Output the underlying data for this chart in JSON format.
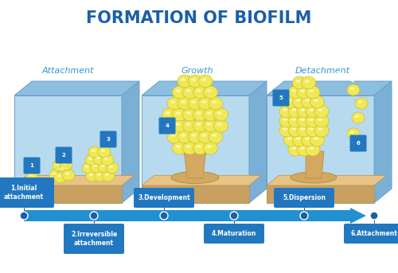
{
  "title": "FORMATION OF BIOFILM",
  "title_color": "#1a5fa8",
  "title_fontsize": 15,
  "bg_color": "#ffffff",
  "phase_labels": [
    "Attachment",
    "Growth",
    "Detachment"
  ],
  "phase_label_color": "#3399cc",
  "phase_label_fontsize": 8,
  "timeline_labels": [
    "1.Initial\nattachment",
    "2.Irreversible\nattachment",
    "3.Development",
    "4.Maturation",
    "5.Dispersion",
    "6.Attachment"
  ],
  "timeline_label_color": "#ffffff",
  "timeline_box_color": "#2278c0",
  "box_face_color": "#b8daee",
  "box_top_color": "#8cbfdf",
  "box_side_color": "#7ab0d5",
  "box_edge_color": "#6aa0c8",
  "floor_top_color": "#e8c484",
  "floor_front_color": "#c8a060",
  "floor_edge_color": "#b89050",
  "bacteria_color": "#f0e855",
  "bacteria_outline": "#c8c030",
  "bacteria_highlight": "#fffff0",
  "num_label_bg": "#2278c0",
  "num_label_color": "#ffffff",
  "arrow_color": "#2090d0",
  "dot_color": "#1a5fa8",
  "stem_color": "#d4a860",
  "stem_edge": "#b09040"
}
